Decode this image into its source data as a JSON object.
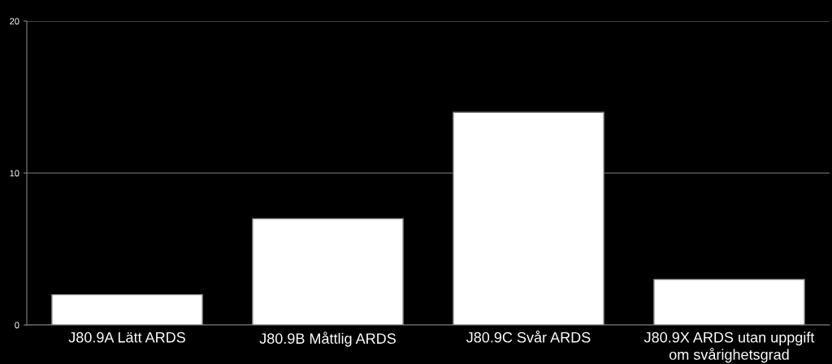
{
  "chart_data": {
    "type": "bar",
    "categories": [
      "J80.9A Lätt ARDS",
      "J80.9B Måttlig ARDS",
      "J80.9C Svår ARDS",
      "J80.9X ARDS utan uppgift\nom svårighetsgrad"
    ],
    "values": [
      2,
      7,
      14,
      3
    ],
    "color": "#ffffff",
    "ylim": [
      0,
      20
    ],
    "yticks": [
      0,
      10,
      20
    ],
    "grid": "y"
  }
}
